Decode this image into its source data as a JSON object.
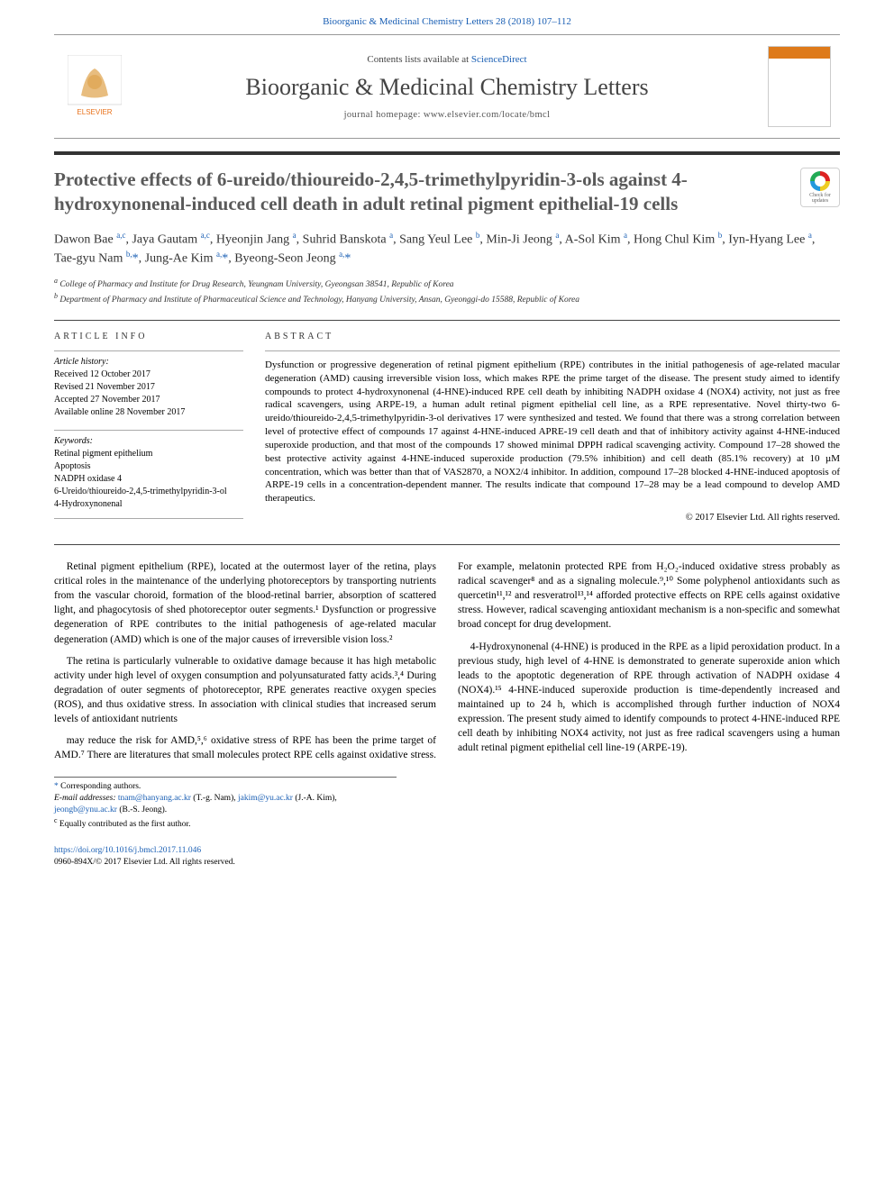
{
  "header": {
    "citation": "Bioorganic & Medicinal Chemistry Letters 28 (2018) 107–112"
  },
  "masthead": {
    "contents_prefix": "Contents lists available at ",
    "contents_link": "ScienceDirect",
    "journal_name": "Bioorganic & Medicinal Chemistry Letters",
    "homepage_prefix": "journal homepage: ",
    "homepage_url": "www.elsevier.com/locate/bmcl",
    "publisher_logo_label": "ELSEVIER"
  },
  "crossmark": {
    "label": "Check for updates"
  },
  "article": {
    "title": "Protective effects of 6-ureido/thioureido-2,4,5-trimethylpyridin-3-ols against 4-hydroxynonenal-induced cell death in adult retinal pigment epithelial-19 cells",
    "authors_html": "Dawon Bae <sup>a,c</sup>, Jaya Gautam <sup>a,c</sup>, Hyeonjin Jang <sup>a</sup>, Suhrid Banskota <sup>a</sup>, Sang Yeul Lee <sup>b</sup>, Min-Ji Jeong <sup>a</sup>, A-Sol Kim <sup>a</sup>, Hong Chul Kim <sup>b</sup>, Iyn-Hyang Lee <sup>a</sup>, Tae-gyu Nam <sup>b,</sup><span class='star'>*</span>, Jung-Ae Kim <sup>a,</sup><span class='star'>*</span>, Byeong-Seon Jeong <sup>a,</sup><span class='star'>*</span>",
    "affiliations": {
      "a": "College of Pharmacy and Institute for Drug Research, Yeungnam University, Gyeongsan 38541, Republic of Korea",
      "b": "Department of Pharmacy and Institute of Pharmaceutical Science and Technology, Hanyang University, Ansan, Gyeonggi-do 15588, Republic of Korea"
    }
  },
  "info": {
    "heading": "ARTICLE INFO",
    "history_label": "Article history:",
    "history": [
      "Received 12 October 2017",
      "Revised 21 November 2017",
      "Accepted 27 November 2017",
      "Available online 28 November 2017"
    ],
    "keywords_label": "Keywords:",
    "keywords": [
      "Retinal pigment epithelium",
      "Apoptosis",
      "NADPH oxidase 4",
      "6-Ureido/thioureido-2,4,5-trimethylpyridin-3-ol",
      "4-Hydroxynonenal"
    ]
  },
  "abstract": {
    "heading": "ABSTRACT",
    "body": "Dysfunction or progressive degeneration of retinal pigment epithelium (RPE) contributes in the initial pathogenesis of age-related macular degeneration (AMD) causing irreversible vision loss, which makes RPE the prime target of the disease. The present study aimed to identify compounds to protect 4-hydroxynonenal (4-HNE)-induced RPE cell death by inhibiting NADPH oxidase 4 (NOX4) activity, not just as free radical scavengers, using ARPE-19, a human adult retinal pigment epithelial cell line, as a RPE representative. Novel thirty-two 6-ureido/thioureido-2,4,5-trimethylpyridin-3-ol derivatives 17 were synthesized and tested. We found that there was a strong correlation between level of protective effect of compounds 17 against 4-HNE-induced APRE-19 cell death and that of inhibitory activity against 4-HNE-induced superoxide production, and that most of the compounds 17 showed minimal DPPH radical scavenging activity. Compound 17–28 showed the best protective activity against 4-HNE-induced superoxide production (79.5% inhibition) and cell death (85.1% recovery) at 10 µM concentration, which was better than that of VAS2870, a NOX2/4 inhibitor. In addition, compound 17–28 blocked 4-HNE-induced apoptosis of ARPE-19 cells in a concentration-dependent manner. The results indicate that compound 17–28 may be a lead compound to develop AMD therapeutics.",
    "copyright": "© 2017 Elsevier Ltd. All rights reserved."
  },
  "body": {
    "p1": "Retinal pigment epithelium (RPE), located at the outermost layer of the retina, plays critical roles in the maintenance of the underlying photoreceptors by transporting nutrients from the vascular choroid, formation of the blood-retinal barrier, absorption of scattered light, and phagocytosis of shed photoreceptor outer segments.¹ Dysfunction or progressive degeneration of RPE contributes to the initial pathogenesis of age-related macular degeneration (AMD) which is one of the major causes of irreversible vision loss.²",
    "p2": "The retina is particularly vulnerable to oxidative damage because it has high metabolic activity under high level of oxygen consumption and polyunsaturated fatty acids.³,⁴ During degradation of outer segments of photoreceptor, RPE generates reactive oxygen species (ROS), and thus oxidative stress. In association with clinical studies that increased serum levels of antioxidant nutrients",
    "p3": "may reduce the risk for AMD,⁵,⁶ oxidative stress of RPE has been the prime target of AMD.⁷ There are literatures that small molecules protect RPE cells against oxidative stress. For example, melatonin protected RPE from H₂O₂-induced oxidative stress probably as radical scavenger⁸ and as a signaling molecule.⁹,¹⁰ Some polyphenol antioxidants such as quercetin¹¹,¹² and resveratrol¹³,¹⁴ afforded protective effects on RPE cells against oxidative stress. However, radical scavenging antioxidant mechanism is a non-specific and somewhat broad concept for drug development.",
    "p4": "4-Hydroxynonenal (4-HNE) is produced in the RPE as a lipid peroxidation product. In a previous study, high level of 4-HNE is demonstrated to generate superoxide anion which leads to the apoptotic degeneration of RPE through activation of NADPH oxidase 4 (NOX4).¹⁵ 4-HNE-induced superoxide production is time-dependently increased and maintained up to 24 h, which is accomplished through further induction of NOX4 expression. The present study aimed to identify compounds to protect 4-HNE-induced RPE cell death by inhibiting NOX4 activity, not just as free radical scavengers using a human adult retinal pigment epithelial cell line-19 (ARPE-19)."
  },
  "footnotes": {
    "corresponding": "Corresponding authors.",
    "email_label": "E-mail addresses:",
    "emails": [
      {
        "addr": "tnam@hanyang.ac.kr",
        "who": "(T.-g. Nam)"
      },
      {
        "addr": "jakim@yu.ac.kr",
        "who": "(J.-A. Kim)"
      },
      {
        "addr": "jeongb@ynu.ac.kr",
        "who": "(B.-S. Jeong)"
      }
    ],
    "equal": "Equally contributed as the first author."
  },
  "footer": {
    "doi": "https://doi.org/10.1016/j.bmcl.2017.11.046",
    "issn_copy": "0960-894X/© 2017 Elsevier Ltd. All rights reserved."
  },
  "colors": {
    "link": "#1a5fb4",
    "rule": "#333333",
    "text": "#000000",
    "muted": "#5a5a5a"
  }
}
